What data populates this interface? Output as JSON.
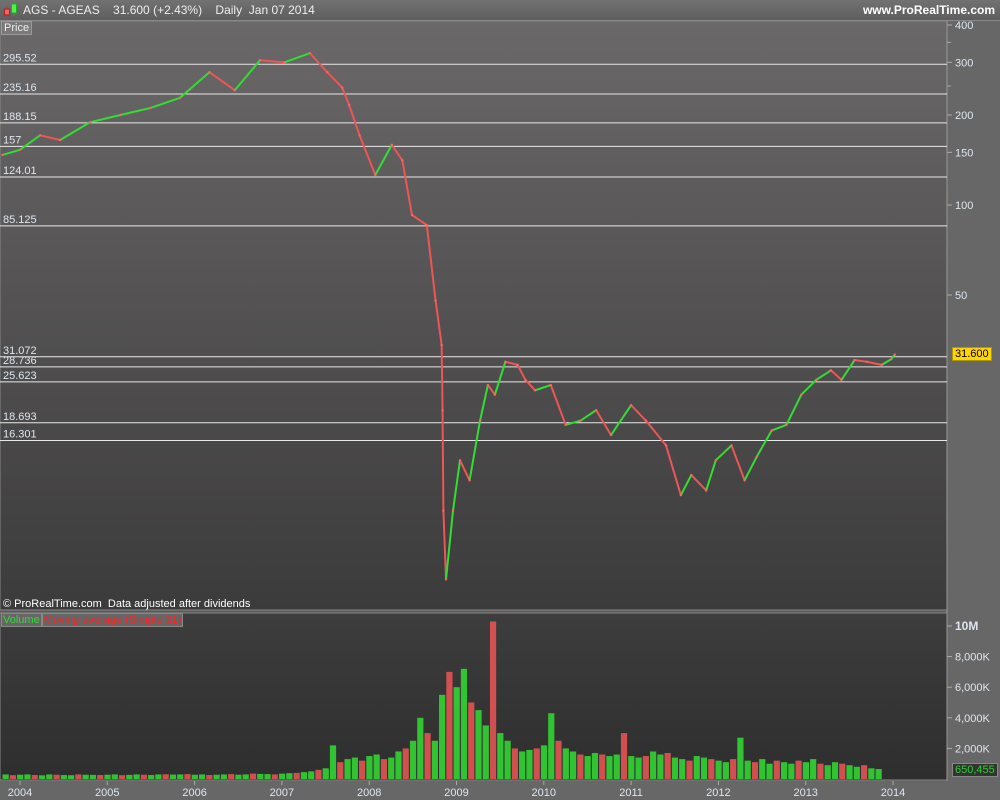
{
  "header": {
    "title": "AGS - AGEAS    31.600 (+2.43%)    Daily  Jan 07 2014",
    "brand": "www.ProRealTime.com",
    "logo_icon": "candlestick-icon"
  },
  "price_panel": {
    "label": "Price",
    "copyright": "© ProRealTime.com  Data adjusted after dividends",
    "last_price": "31.600"
  },
  "volume_panel": {
    "label_volume": "Volume",
    "label_ma": "Moving average (Simple 31)",
    "last_volume": "650,455"
  },
  "colors": {
    "up": "#33dd33",
    "down": "#ee5555",
    "level_line": "#e8e8e8",
    "last_price_bg": "#ffd400"
  },
  "chart_data": [
    {
      "type": "line",
      "title": "AGS - AGEAS",
      "yscale": "log",
      "ylim": [
        5,
        420
      ],
      "xlim": [
        2003.8,
        2014.03
      ],
      "x_ticks": [
        "2004",
        "2005",
        "2006",
        "2007",
        "2008",
        "2009",
        "2010",
        "2011",
        "2012",
        "2013",
        "2014"
      ],
      "y_ticks": [
        "400",
        "300",
        "200",
        "150",
        "100",
        "50"
      ],
      "levels": [
        "295.52",
        "235.16",
        "188.15",
        "157",
        "124.01",
        "85.125",
        "31.072",
        "28.736",
        "25.623",
        "18.693",
        "16.301"
      ],
      "x": [
        2003.8,
        2004.0,
        2004.23,
        2004.46,
        2004.8,
        2005.15,
        2005.49,
        2005.83,
        2006.17,
        2006.46,
        2006.75,
        2007.03,
        2007.32,
        2007.52,
        2007.69,
        2007.77,
        2007.89,
        2008.07,
        2008.26,
        2008.38,
        2008.49,
        2008.66,
        2008.76,
        2008.83,
        2008.84,
        2008.85,
        2008.88,
        2008.96,
        2009.04,
        2009.15,
        2009.27,
        2009.36,
        2009.44,
        2009.56,
        2009.7,
        2009.79,
        2009.9,
        2010.08,
        2010.25,
        2010.42,
        2010.6,
        2010.77,
        2011.0,
        2011.17,
        2011.4,
        2011.57,
        2011.69,
        2011.86,
        2011.97,
        2012.15,
        2012.3,
        2012.44,
        2012.61,
        2012.78,
        2012.95,
        2013.12,
        2013.29,
        2013.41,
        2013.56,
        2013.7,
        2013.87,
        2013.98,
        2014.02
      ],
      "y": [
        147,
        153,
        171,
        165,
        189,
        200,
        211,
        228,
        278,
        242,
        305,
        300,
        322,
        278,
        247,
        216,
        171,
        126,
        159,
        141,
        92.6,
        85.7,
        48,
        34,
        20.6,
        9.5,
        5.6,
        9.5,
        14,
        12,
        19,
        25,
        23.2,
        29.9,
        29.2,
        26,
        24,
        25,
        18.4,
        19,
        20.6,
        17,
        21.4,
        19,
        15.7,
        10.7,
        12.5,
        11.1,
        14,
        15.7,
        12,
        14.4,
        17.6,
        18.4,
        23.2,
        26,
        28,
        26,
        30.3,
        29.9,
        29.2,
        30.5,
        31.6
      ]
    },
    {
      "type": "bar",
      "series": [
        {
          "name": "Volume"
        },
        {
          "name": "Moving average (Simple 31)"
        }
      ],
      "ylim": [
        0,
        10500000
      ],
      "y_ticks": [
        "10M",
        "8,000K",
        "6,000K",
        "4,000K",
        "2,000K"
      ],
      "x_start": 2003.8,
      "x_step_months": 1,
      "values_k": [
        300,
        250,
        280,
        300,
        260,
        240,
        300,
        280,
        260,
        250,
        300,
        280,
        270,
        260,
        280,
        300,
        250,
        270,
        300,
        280,
        260,
        300,
        310,
        290,
        300,
        320,
        280,
        300,
        260,
        280,
        300,
        320,
        280,
        300,
        350,
        330,
        320,
        300,
        350,
        380,
        400,
        450,
        500,
        600,
        700,
        2200,
        1100,
        1300,
        1400,
        1200,
        1500,
        1600,
        1300,
        1400,
        1800,
        2000,
        2500,
        4000,
        3000,
        2500,
        5500,
        7000,
        6000,
        7200,
        5000,
        4500,
        3500,
        10300,
        3000,
        2500,
        2000,
        1800,
        1900,
        2000,
        2200,
        4300,
        2500,
        2000,
        1800,
        1600,
        1500,
        1700,
        1600,
        1500,
        1600,
        3000,
        1500,
        1400,
        1500,
        1800,
        1600,
        1700,
        1400,
        1300,
        1200,
        1500,
        1400,
        1300,
        1200,
        1100,
        1300,
        2700,
        1200,
        1100,
        1300,
        1000,
        1200,
        1100,
        1000,
        1200,
        1100,
        1300,
        1000,
        900,
        1100,
        1000,
        900,
        800,
        900,
        700,
        650
      ]
    }
  ]
}
